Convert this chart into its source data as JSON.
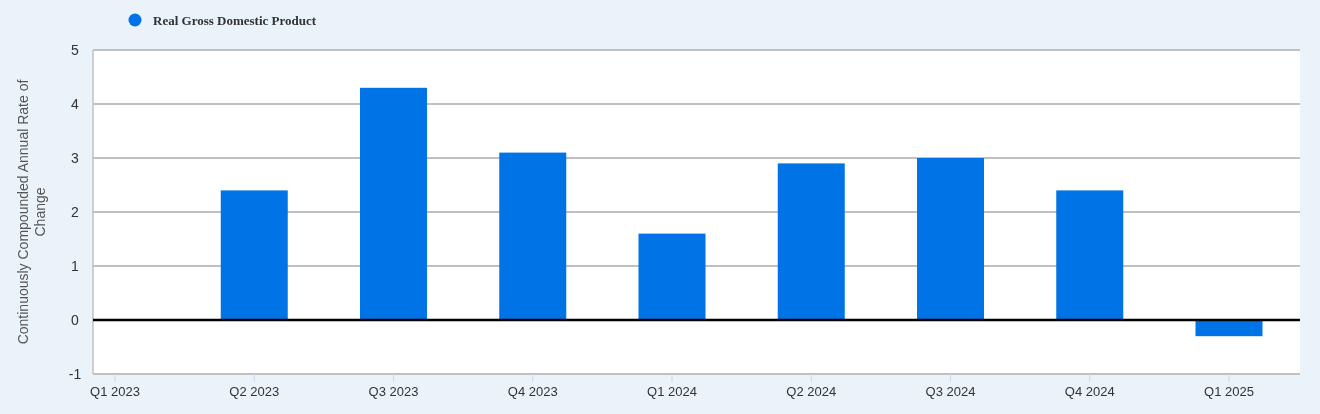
{
  "chart_data": {
    "type": "bar",
    "ylabel": "Continuously Compounded Annual Rate of Change",
    "categories": [
      "Q1 2023",
      "Q2 2023",
      "Q3 2023",
      "Q4 2023",
      "Q1 2024",
      "Q2 2024",
      "Q3 2024",
      "Q4 2024",
      "Q1 2025"
    ],
    "series": [
      {
        "name": "Real Gross Domestic Product",
        "color": "#0073e6",
        "values": [
          null,
          2.4,
          4.3,
          3.1,
          1.6,
          2.9,
          3.0,
          2.4,
          -0.3
        ]
      }
    ],
    "ylim": [
      -1,
      5
    ],
    "yticks": [
      -1,
      0,
      1,
      2,
      3,
      4,
      5
    ],
    "ref_lines": [
      {
        "axis": "y",
        "value": 0,
        "color": "#000000"
      }
    ],
    "grid": "y",
    "legend": "top left"
  }
}
